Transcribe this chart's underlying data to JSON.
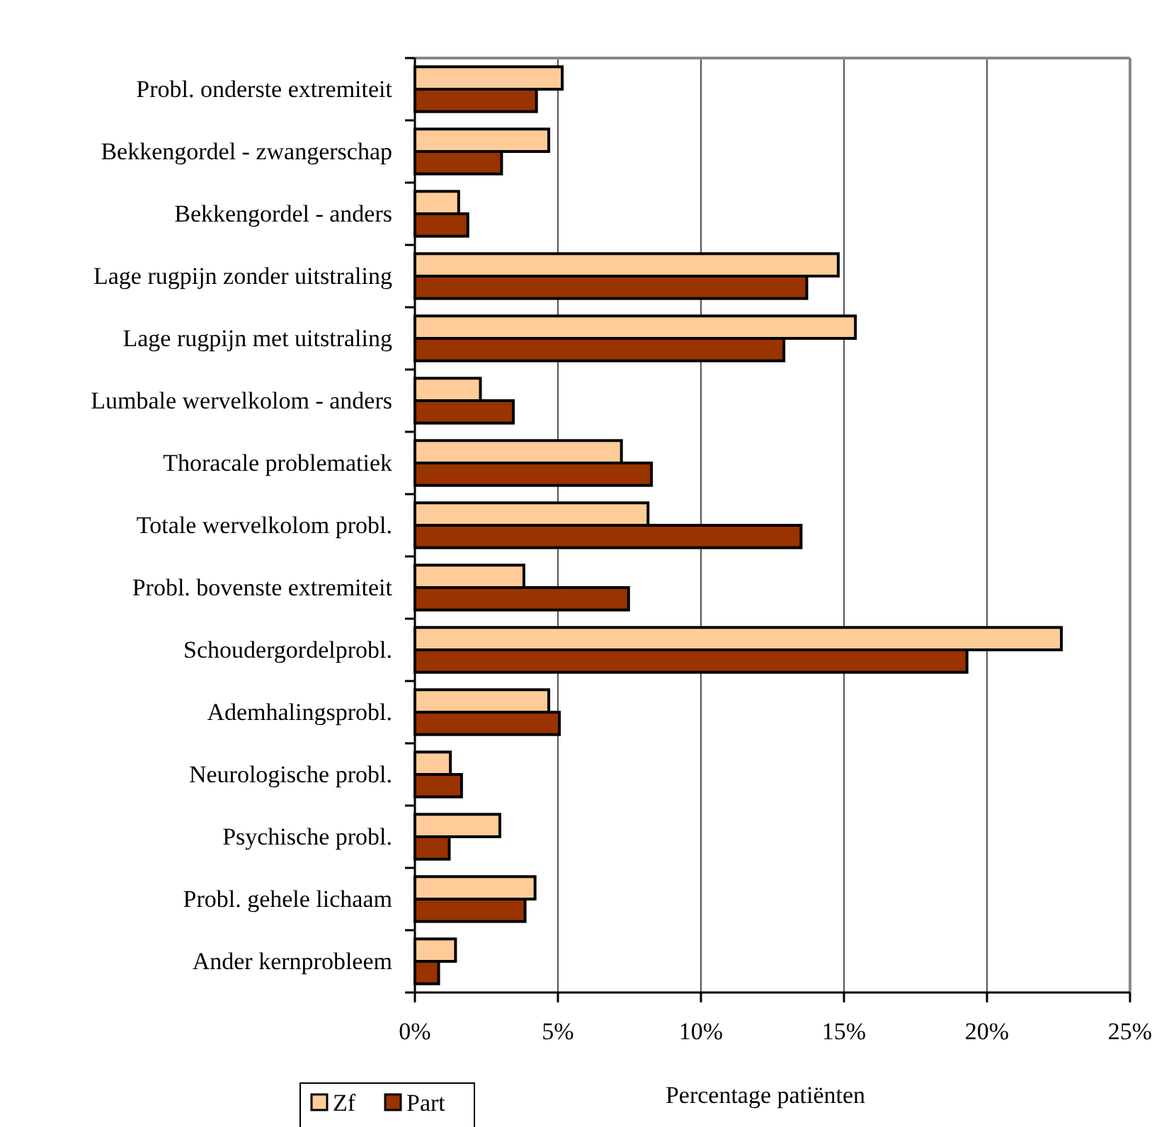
{
  "chart_data": {
    "type": "bar",
    "orientation": "horizontal",
    "xlabel": "Percentage patiënten",
    "categories": [
      "Probl. onderste extremiteit",
      "Bekkengordel - zwangerschap",
      "Bekkengordel - anders",
      "Lage rugpijn zonder uitstraling",
      "Lage rugpijn met uitstraling",
      "Lumbale wervelkolom - anders",
      "Thoracale problematiek",
      "Totale wervelkolom probl.",
      "Probl. bovenste extremiteit",
      "Schoudergordelprobl.",
      "Ademhalingsprobl.",
      "Neurologische probl.",
      "Psychische probl.",
      "Probl. gehele lichaam",
      "Ander kernprobleem"
    ],
    "series": [
      {
        "name": "Zf",
        "color": "#ffcc99",
        "values": [
          5.15,
          4.68,
          1.53,
          14.8,
          15.4,
          2.29,
          7.22,
          8.15,
          3.81,
          22.6,
          4.68,
          1.24,
          2.97,
          4.2,
          1.42
        ]
      },
      {
        "name": "Part",
        "color": "#993300",
        "values": [
          4.25,
          3.03,
          1.85,
          13.7,
          12.9,
          3.44,
          8.27,
          13.5,
          7.47,
          19.3,
          5.05,
          1.63,
          1.2,
          3.85,
          0.83
        ]
      }
    ],
    "xlim": [
      0,
      25
    ],
    "xticks": [
      {
        "value": 0,
        "label": "0%"
      },
      {
        "value": 5,
        "label": "5%"
      },
      {
        "value": 10,
        "label": "10%"
      },
      {
        "value": 15,
        "label": "15%"
      },
      {
        "value": 20,
        "label": "20%"
      },
      {
        "value": 25,
        "label": "25%"
      }
    ],
    "grid": "x",
    "legend": "bottom left"
  }
}
